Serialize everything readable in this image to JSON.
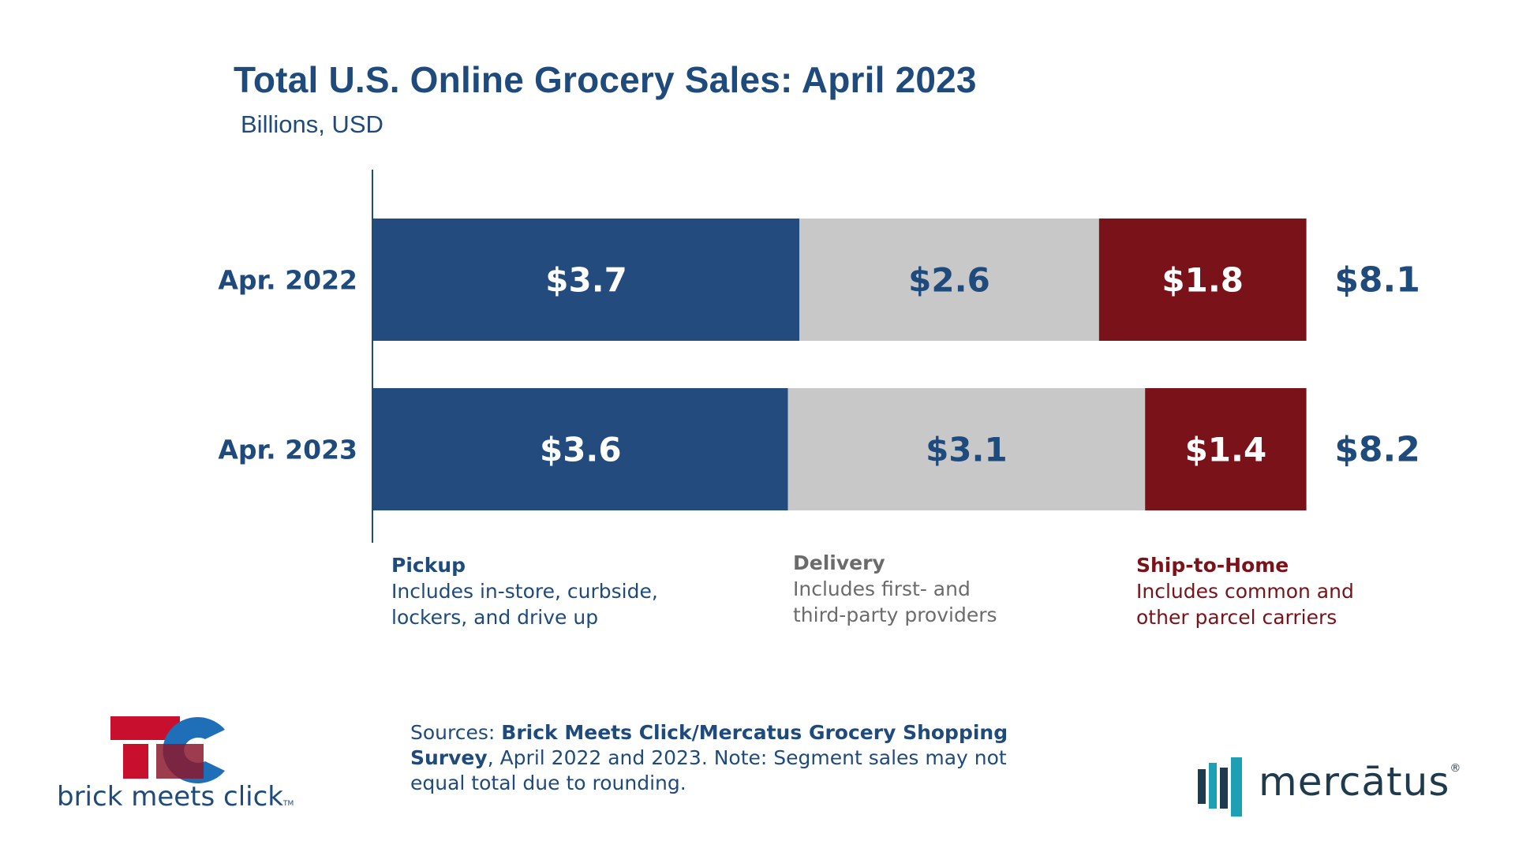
{
  "chart_data": {
    "type": "bar",
    "orientation": "horizontal",
    "stacked": true,
    "title": "Total U.S. Online Grocery Sales: April 2023",
    "subtitle": "Billions, USD",
    "categories": [
      "Apr. 2022",
      "Apr. 2023"
    ],
    "series": [
      {
        "name": "Pickup",
        "values": [
          3.7,
          3.6
        ],
        "labels": [
          "$3.7",
          "$3.6"
        ],
        "color": "#234b7d",
        "label_color": "#ffffff"
      },
      {
        "name": "Delivery",
        "values": [
          2.6,
          3.1
        ],
        "labels": [
          "$2.6",
          "$3.1"
        ],
        "color": "#c8c8c8",
        "label_color": "#1f4a7c"
      },
      {
        "name": "Ship-to-Home",
        "values": [
          1.8,
          1.4
        ],
        "labels": [
          "$1.8",
          "$1.4"
        ],
        "color": "#7a121a",
        "label_color": "#ffffff"
      }
    ],
    "totals": [
      8.1,
      8.2
    ],
    "total_labels": [
      "$8.1",
      "$8.2"
    ],
    "grid": false
  },
  "legend": [
    {
      "name": "Pickup",
      "description": "Includes in-store, curbside,\nlockers, and drive up",
      "color": "#1f4a7c"
    },
    {
      "name": "Delivery",
      "description": "Includes first- and\nthird-party providers",
      "color": "#6b6b6b"
    },
    {
      "name": "Ship-to-Home",
      "description": "Includes common and\nother parcel carriers",
      "color": "#7a1219"
    }
  ],
  "source": {
    "prefix": "Sources: ",
    "bold": "Brick Meets Click/Mercatus Grocery Shopping Survey",
    "rest": ", April 2022 and 2023. Note: Segment sales may not equal total due to rounding."
  },
  "logos": {
    "left": {
      "text": "brick meets click",
      "tm": "TM",
      "colors": {
        "red": "#c8102e",
        "blue": "#1f6fb8"
      }
    },
    "right": {
      "text": "mercātus",
      "reg": "®",
      "colors": {
        "dark": "#1e3a4c",
        "teal": "#1ea0b4"
      }
    }
  }
}
